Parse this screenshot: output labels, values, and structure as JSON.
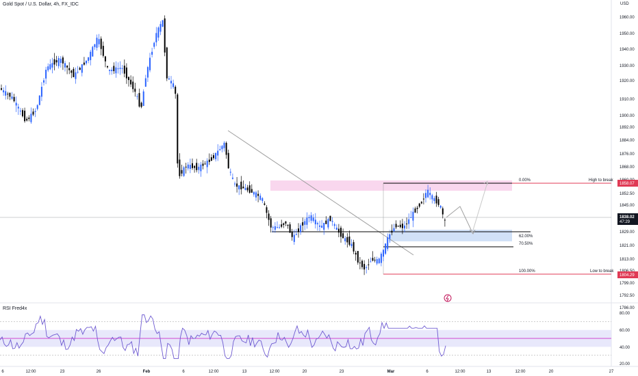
{
  "header": {
    "symbol_title": "Gold Spot / U.S. Dollar, 4h, FX_IDC",
    "currency": "USD"
  },
  "chart_data": [
    {
      "type": "candlestick",
      "y_axis": {
        "labels": [
          "1960.00",
          "1950.00",
          "1940.00",
          "1930.00",
          "1920.00",
          "1910.00",
          "1900.00",
          "1892.00",
          "1884.00",
          "1876.00",
          "1868.00",
          "1860.00",
          "1852.50",
          "1845.00",
          "1837.50",
          "1829.00",
          "1821.00",
          "1813.00",
          "1806.50",
          "1799.00",
          "1792.50",
          "1786.00"
        ]
      },
      "x_axis": {
        "ticks": [
          "6",
          "12:00",
          "23",
          "26",
          "Feb",
          "6",
          "12:00",
          "13",
          "12:00",
          "20",
          "23",
          "Mar",
          "6",
          "12:00",
          "13",
          "12:00",
          "20",
          "27"
        ]
      },
      "price_labels": {
        "high": "1858.07",
        "current": "1838.02",
        "countdown": "47:29",
        "low": "1804.29"
      },
      "annotations": {
        "high_to_break": "High to break",
        "low_to_break": "Low to break",
        "fib_0": "0.00%",
        "fib_62": "62.00%",
        "fib_70": "70.50%",
        "fib_100": "100.00%"
      },
      "colors": {
        "up": "#2962ff",
        "down": "#000000",
        "resistance_zone": "#f7cdea",
        "support_zone": "#c9dcf6",
        "level_line": "#e03a55",
        "trendline": "#9e9e9e"
      }
    },
    {
      "type": "line",
      "name": "RSI Fred4x",
      "y_axis": {
        "labels": [
          "80.00",
          "60.00",
          "40.00",
          "20.00"
        ],
        "ylim": [
          20,
          80
        ]
      },
      "colors": {
        "line": "#6e5ad1",
        "mid": "#d146d1",
        "band": "#e8e8fb"
      }
    }
  ]
}
